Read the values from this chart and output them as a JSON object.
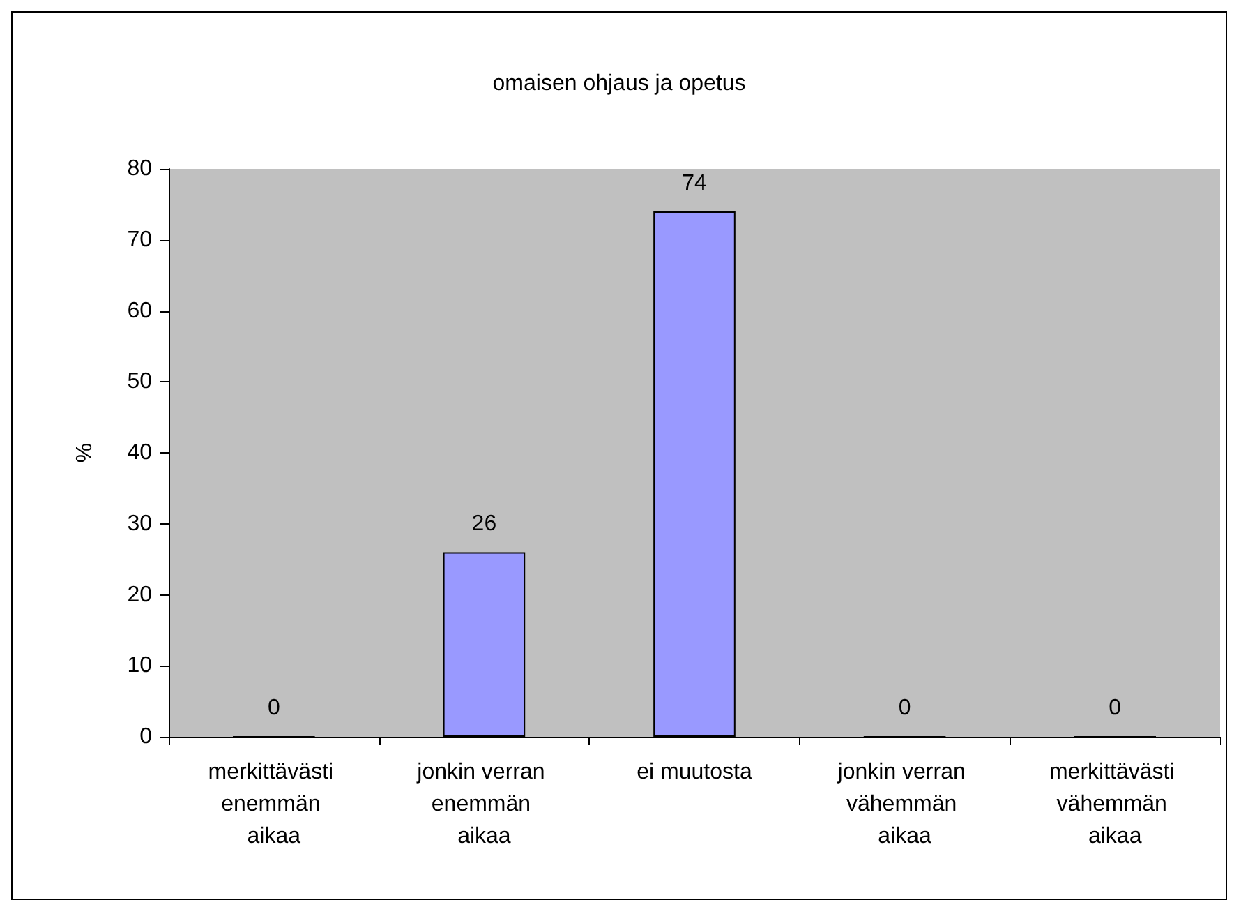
{
  "chart_data": {
    "type": "bar",
    "title": "omaisen ohjaus ja opetus",
    "ylabel": "%",
    "categories": [
      "merkittävästi enemmän aikaa",
      "jonkin verran enemmän aikaa",
      "ei muutosta",
      "jonkin verran vähemmän aikaa",
      "merkittävästi vähemmän aikaa"
    ],
    "values": [
      0,
      26,
      74,
      0,
      0
    ],
    "color": "#9999ff",
    "data_labels": true,
    "grid": false,
    "ylim": [
      0,
      80
    ],
    "yticks": [
      0,
      10,
      20,
      30,
      40,
      50,
      60,
      70,
      80
    ]
  }
}
